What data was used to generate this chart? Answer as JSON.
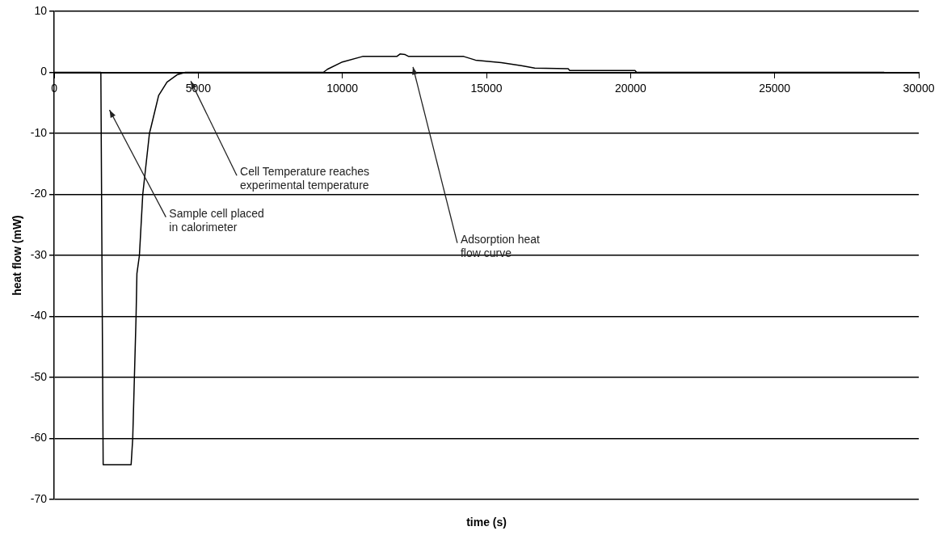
{
  "chart_data": {
    "type": "line",
    "xlabel": "time (s)",
    "ylabel": "heat flow (mW)",
    "series": [
      {
        "color": "#000000",
        "x": [
          0,
          1620,
          1700,
          2670,
          2726,
          2784,
          2842,
          2871,
          2958,
          3074,
          3306,
          3364,
          3625,
          3915,
          4263,
          4553,
          9340,
          9480,
          10000,
          10700,
          11890,
          12000,
          12180,
          12300,
          14210,
          14620,
          15515,
          16210,
          16675,
          17835,
          17890,
          20155,
          20210,
          28800
        ],
        "values": [
          0,
          0,
          -64.3,
          -64.3,
          -60,
          -50,
          -40,
          -33,
          -30,
          -20,
          -10,
          -8.9,
          -3.8,
          -1.6,
          -0.4,
          0,
          0,
          0.5,
          1.7,
          2.6,
          2.6,
          3.0,
          2.9,
          2.6,
          2.6,
          2.0,
          1.6,
          1.1,
          0.7,
          0.6,
          0.3,
          0.3,
          0,
          0
        ]
      }
    ],
    "xlim": [
      0,
      30000
    ],
    "xticks": [
      0,
      5000,
      10000,
      15000,
      20000,
      25000,
      30000
    ],
    "ylim": [
      -70,
      10
    ],
    "yticks": [
      -70,
      -60,
      -50,
      -40,
      -30,
      -20,
      -10,
      0,
      10
    ],
    "grid": "y",
    "legend": false,
    "marker": "none",
    "line_style": "solid",
    "annotations": [
      "Sample cell placed in calorimeter",
      "Cell Temperature reaches experimental temperature",
      "Adsorption heat flow curve"
    ]
  }
}
